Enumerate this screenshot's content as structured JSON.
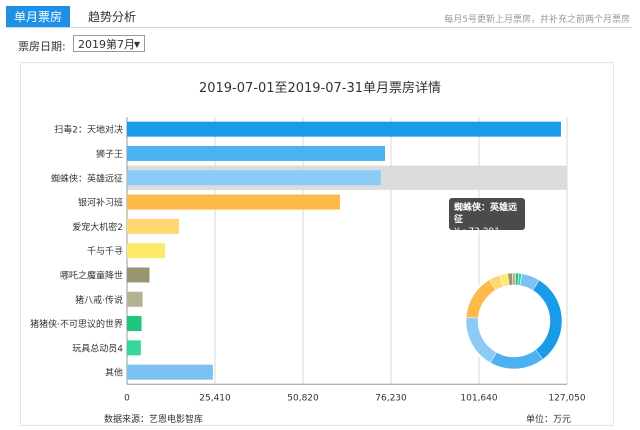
{
  "tabs": [
    {
      "label": "单月票房"
    },
    {
      "label": "趋势分析"
    }
  ],
  "note": "每月5号更新上月票房，并补充之前两个月票房",
  "filter": {
    "label": "票房日期:",
    "value": "2019第7月"
  },
  "tooltip": {
    "title": "蜘蛛侠：英雄远征",
    "value": "¥ : 73,291"
  },
  "footer": {
    "source": "数据来源：艺恩电影智库",
    "unit": "单位：万元"
  },
  "chart_data": {
    "type": "bar",
    "title": "2019-07-01至2019-07-31单月票房详情",
    "categories": [
      "扫毒2：天地对决",
      "狮子王",
      "蜘蛛侠：英雄远征",
      "银河补习班",
      "爱宠大机密2",
      "千与千寻",
      "哪吒之魔童降世",
      "猪八戒·传说",
      "猪猪侠·不可思议的世界",
      "玩具总动员4",
      "其他"
    ],
    "values": [
      125300,
      74500,
      73291,
      61500,
      15000,
      11000,
      6500,
      4500,
      4200,
      4000,
      24800
    ],
    "colors": [
      "#1a9be8",
      "#4cb1f0",
      "#8ccbf5",
      "#fdb94a",
      "#fed672",
      "#fde96a",
      "#9b9672",
      "#b5b294",
      "#1ec77c",
      "#34d99a",
      "#7bc1f2"
    ],
    "xticks": [
      0,
      25410,
      50820,
      76230,
      101640,
      127050
    ],
    "xtick_labels": [
      "0",
      "25,410",
      "50,820",
      "76,230",
      "101,640",
      "127,050"
    ],
    "xlim": [
      0,
      127050
    ],
    "highlight_index": 2
  }
}
